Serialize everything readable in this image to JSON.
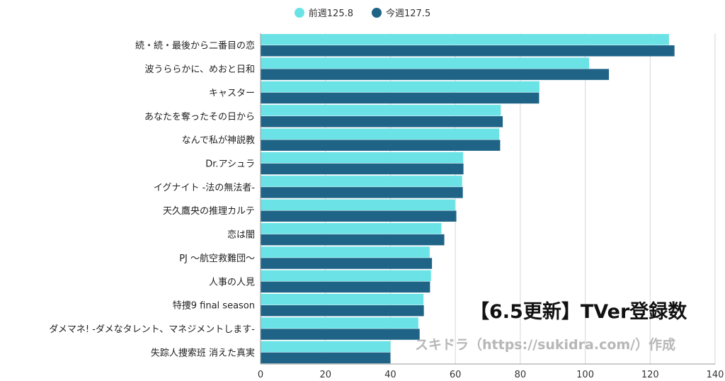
{
  "chart_data": {
    "type": "bar",
    "orientation": "horizontal",
    "categories": [
      "続・続・最後から二番目の恋",
      "波うららかに、めおと日和",
      "キャスター",
      "あなたを奪ったその日から",
      "なんで私が神説教",
      "Dr.アシュラ",
      "イグナイト -法の無法者-",
      "天久鷹央の推理カルテ",
      "恋は闇",
      "PJ ～航空救難団～",
      "人事の人見",
      "特捜9 final season",
      "ダメマネ! -ダメなタレント、マネジメントします-",
      "失踪人捜索班 消えた真実"
    ],
    "series": [
      {
        "name": "前週125.8",
        "color": "#6be3e6",
        "values": [
          125.8,
          101.2,
          85.9,
          74.0,
          73.5,
          62.4,
          62.1,
          59.9,
          55.7,
          52.1,
          52.5,
          50.2,
          48.6,
          40.0
        ]
      },
      {
        "name": "今週127.5",
        "color": "#1f6487",
        "values": [
          127.5,
          107.3,
          85.8,
          74.6,
          73.8,
          62.5,
          62.3,
          60.3,
          56.6,
          52.8,
          52.2,
          50.3,
          49.0,
          40.0
        ]
      }
    ],
    "xlim": [
      0,
      140
    ],
    "xticks": [
      0,
      20,
      40,
      60,
      80,
      100,
      120,
      140
    ],
    "grid": true,
    "legend_position": "top-center"
  },
  "headline": "【6.5更新】TVer登録数",
  "credit": "スキドラ（https://sukidra.com/）作成"
}
